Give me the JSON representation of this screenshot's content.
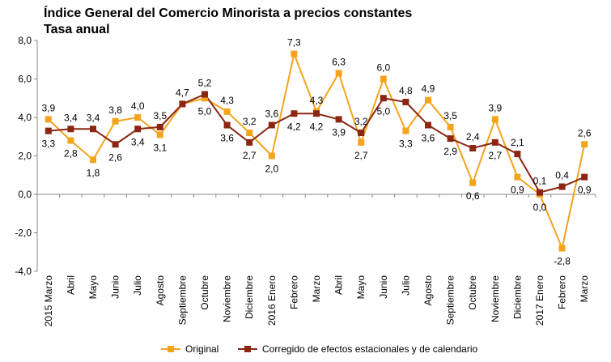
{
  "chart_data": {
    "type": "line",
    "title": "Índice General del Comercio Minorista a precios constantes",
    "subtitle": "Tasa anual",
    "xlabel": "",
    "ylabel": "",
    "ylim": [
      -4.0,
      8.0
    ],
    "yticks": [
      "-4,0",
      "-2,0",
      "0,0",
      "2,0",
      "4,0",
      "6,0",
      "8,0"
    ],
    "ytick_values": [
      -4,
      -2,
      0,
      2,
      4,
      6,
      8
    ],
    "grid": false,
    "legend_position": "bottom",
    "categories": [
      "2015 Marzo",
      "Abril",
      "Mayo",
      "Junio",
      "Julio",
      "Agosto",
      "Septiembre",
      "Octubre",
      "Noviembre",
      "Diciembre",
      "2016 Enero",
      "Febrero",
      "Marzo",
      "Abril",
      "Mayo",
      "Junio",
      "Julio",
      "Agosto",
      "Septiembre",
      "Octubre",
      "Noviembre",
      "Diciembre",
      "2017 Enero",
      "Febrero",
      "Marzo"
    ],
    "series": [
      {
        "name": "Original",
        "color": "#f4a41c",
        "values": [
          3.9,
          2.8,
          1.8,
          3.8,
          4.0,
          3.1,
          4.7,
          5.0,
          4.3,
          3.2,
          2.0,
          7.3,
          4.3,
          6.3,
          2.7,
          6.0,
          3.3,
          4.9,
          3.5,
          0.6,
          3.9,
          0.9,
          0.0,
          -2.8,
          2.6
        ],
        "labels": [
          "3,9",
          "2,8",
          "1,8",
          "3,8",
          "4,0",
          "3,1",
          "4,7",
          "5,0",
          "4,3",
          "3,2",
          "2,0",
          "7,3",
          "4,3",
          "6,3",
          "2,7",
          "6,0",
          "3,3",
          "4,9",
          "3,5",
          "0,6",
          "3,9",
          "0,9",
          "0,0",
          "-2,8",
          "2,6"
        ]
      },
      {
        "name": "Corregido de efectos estacionales y de calendario",
        "color": "#8b2612",
        "values": [
          3.3,
          3.4,
          3.4,
          2.6,
          3.4,
          3.5,
          4.7,
          5.2,
          3.6,
          2.7,
          3.6,
          4.2,
          4.2,
          3.9,
          3.2,
          5.0,
          4.8,
          3.6,
          2.9,
          2.4,
          2.7,
          2.1,
          0.1,
          0.4,
          0.9
        ],
        "labels": [
          "3,3",
          "3,4",
          "3,4",
          "2,6",
          "3,4",
          "3,5",
          "",
          "5,2",
          "3,6",
          "2,7",
          "3,6",
          "4,2",
          "4,2",
          "3,9",
          "3,2",
          "5,0",
          "4,8",
          "3,6",
          "2,9",
          "2,4",
          "2,7",
          "2,1",
          "0,1",
          "0,4",
          "0,9"
        ]
      }
    ]
  }
}
